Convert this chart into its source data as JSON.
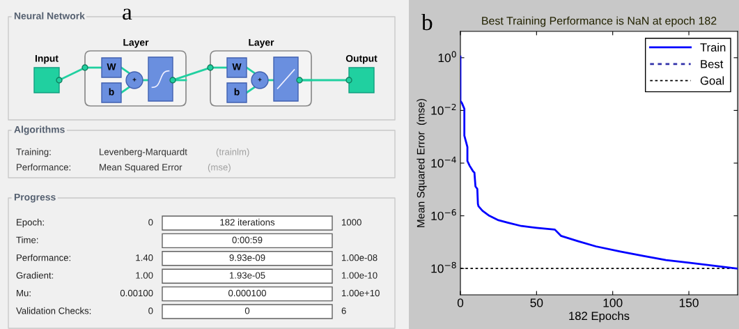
{
  "chart_data": [
    {
      "type": "other",
      "title": "a",
      "annotations": [
        "Neural Network",
        "Input",
        "Layer",
        "W",
        "b",
        "+",
        "Layer",
        "W",
        "b",
        "+",
        "Output",
        "Algorithms",
        "Training:",
        "Levenberg-Marquardt",
        "(trainlm)",
        "Performance:",
        "Mean Squared Error",
        "(mse)",
        "Progress",
        "Epoch:",
        "0",
        "182 iterations",
        "1000",
        "Time:",
        "0:00:59",
        "Performance:",
        "1.40",
        "9.93e-09",
        "1.00e-08",
        "Gradient:",
        "1.00",
        "1.93e-05",
        "1.00e-10",
        "Mu:",
        "0.00100",
        "0.000100",
        "1.00e+10",
        "Validation Checks:",
        "0",
        "0",
        "6"
      ]
    },
    {
      "type": "line",
      "title": "Best Training Performance is NaN at epoch 182",
      "xlabel": "182 Epochs",
      "ylabel": "Mean Squared Error  (mse)",
      "log": "y",
      "xlim": [
        0,
        182
      ],
      "xticks": [
        0,
        50,
        100,
        150
      ],
      "ylim": [
        1e-09,
        10
      ],
      "yticks": [
        {
          "value": 1,
          "label": "10$^{0}$"
        },
        {
          "value": 0.01,
          "label": "10$^{−2}$"
        },
        {
          "value": 0.0001,
          "label": "10$^{−4}$"
        },
        {
          "value": 1e-06,
          "label": "10$^{−6}$"
        },
        {
          "value": 1e-08,
          "label": "10$^{−8}$"
        }
      ],
      "grid": false,
      "legend": "top right",
      "annotations": [
        "b"
      ],
      "series": [
        {
          "name": "Train",
          "color": "#0000ff",
          "line_style": "solid",
          "x": [
            0,
            0,
            1,
            2.6,
            2.6,
            4.6,
            4.6,
            6.1,
            8.4,
            9.2,
            9.9,
            11.1,
            11.5,
            11.9,
            14.5,
            19,
            25,
            31,
            40,
            50,
            62,
            66,
            77,
            89,
            105,
            120,
            135,
            150,
            166,
            182
          ],
          "values": [
            1.1,
            0.023,
            0.019,
            0.0115,
            0.0011,
            0.00041,
            0.00012,
            7.9e-05,
            4.8e-05,
            4.4e-05,
            1.3e-05,
            1.05e-05,
            2.8e-06,
            2.3e-06,
            1.55e-06,
            1e-06,
            6.8e-07,
            5.5e-07,
            4.1e-07,
            3.5e-07,
            3e-07,
            1.74e-07,
            1.1e-07,
            6.9e-08,
            4.4e-08,
            3e-08,
            2.1e-08,
            1.66e-08,
            1.29e-08,
            9.93e-09
          ]
        },
        {
          "name": "Best",
          "color": "#3333aa",
          "line_style": "dotted"
        }
      ],
      "ref_lines": [
        {
          "axis": "y",
          "value": 1e-08,
          "label": "Goal",
          "color": "#000000",
          "line_style": "dotted"
        }
      ]
    }
  ]
}
